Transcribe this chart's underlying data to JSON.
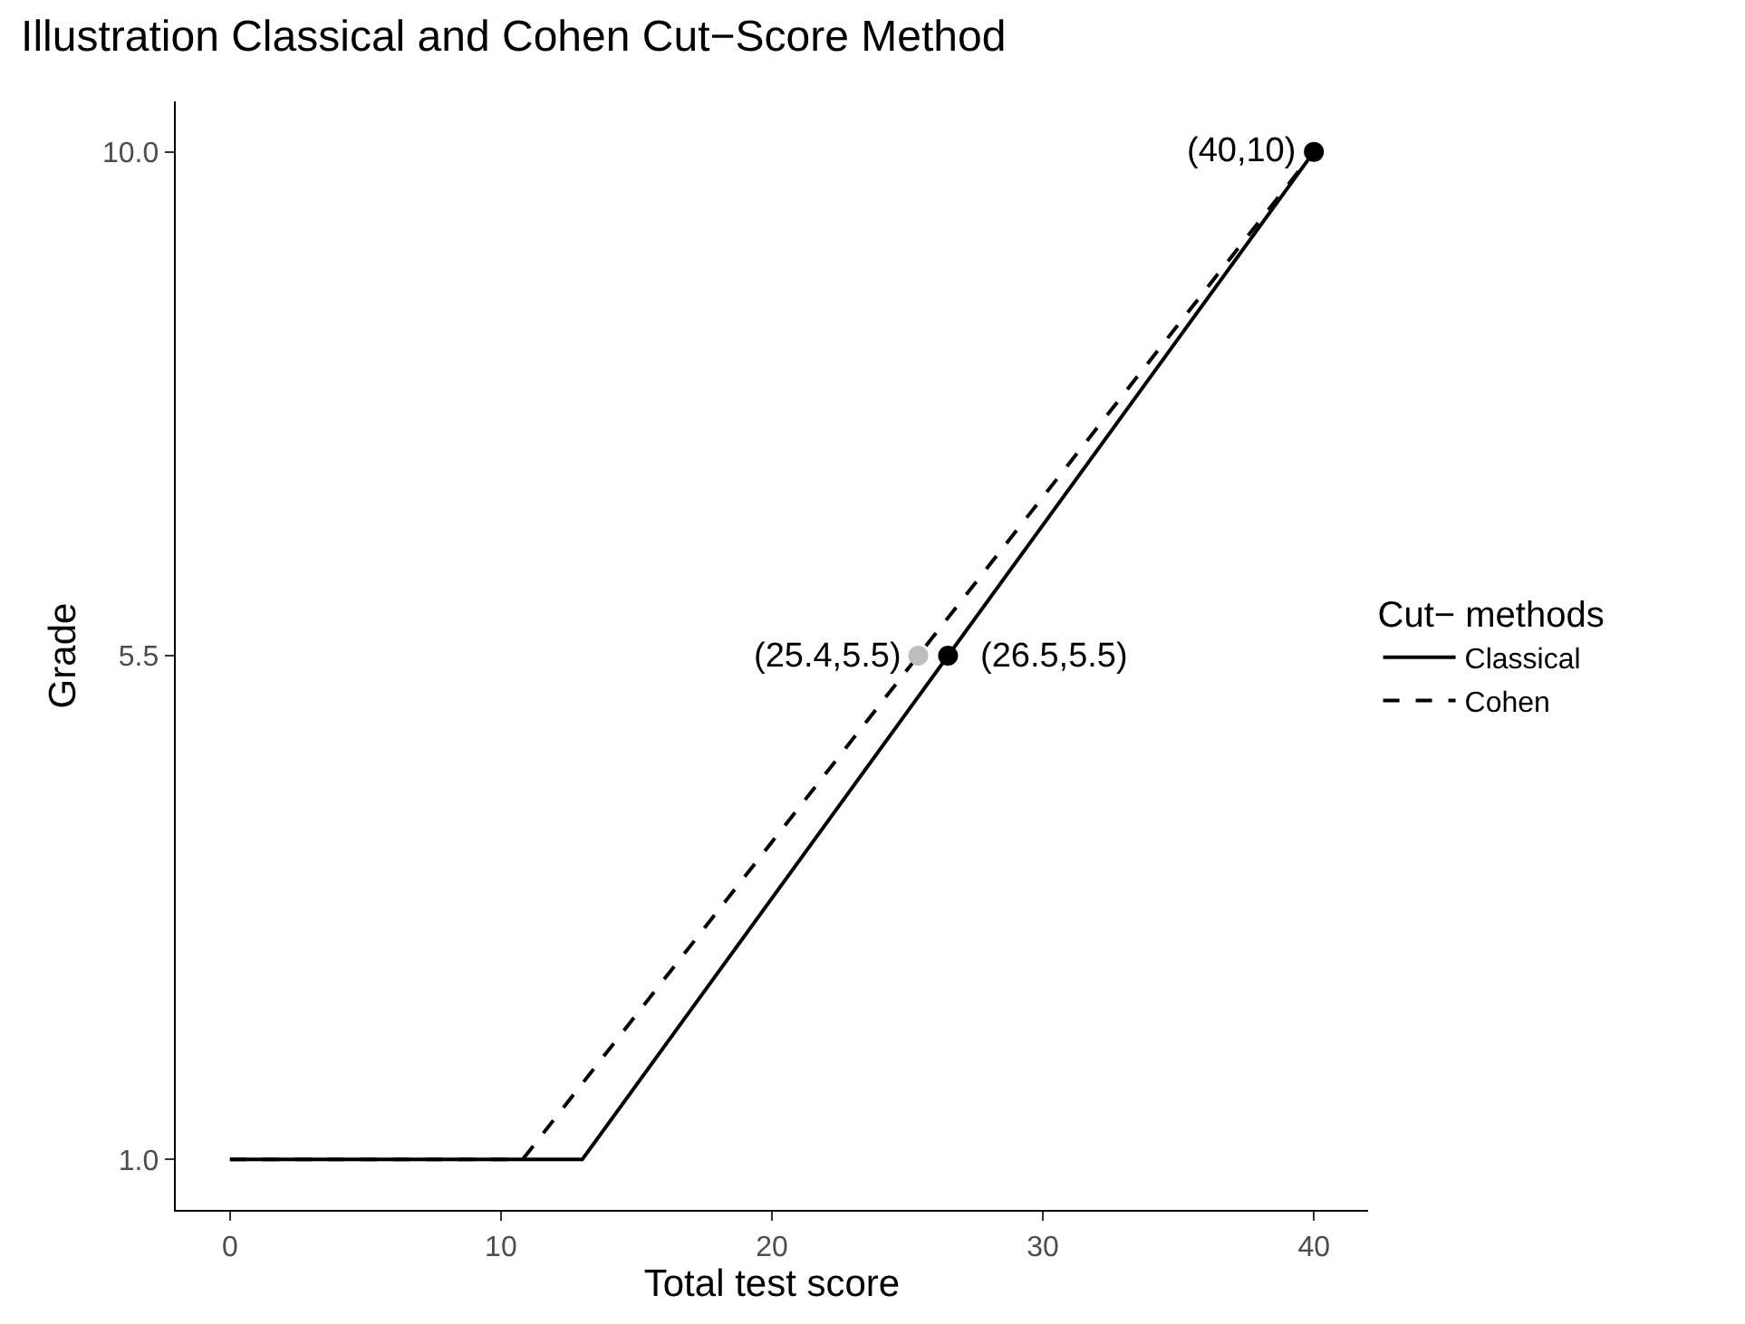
{
  "chart_data": {
    "type": "line",
    "title": "Illustration Classical and Cohen Cut−Score Method",
    "xlabel": "Total test score",
    "ylabel": "Grade",
    "legend_title": "Cut− methods",
    "series": [
      {
        "name": "Classical",
        "color": "#000000",
        "x": [
          0,
          13,
          40
        ],
        "values": [
          1,
          1,
          10
        ],
        "line_style": "solid",
        "marker": "none"
      },
      {
        "name": "Cohen",
        "color": "#000000",
        "x": [
          0,
          10.8,
          40
        ],
        "values": [
          1,
          1,
          10
        ],
        "line_style": "dashed",
        "marker": "none"
      },
      {
        "type": "scatter",
        "x": [
          40,
          26.5,
          25.4
        ],
        "values": [
          10,
          5.5,
          5.5
        ],
        "colors": [
          "#000000",
          "#000000",
          "#bebebe"
        ],
        "marker": "circle"
      }
    ],
    "annotations": [
      {
        "text": "(40,10)",
        "x": 40,
        "y": 10
      },
      {
        "text": "(26.5,5.5)",
        "x": 26.5,
        "y": 5.5
      },
      {
        "text": "(25.4,5.5)",
        "x": 25.4,
        "y": 5.5
      }
    ],
    "xlim": [
      -2,
      42
    ],
    "xticks": [
      0,
      10,
      20,
      30,
      40
    ],
    "ylim": [
      0.55,
      10.45
    ],
    "yticks": [
      {
        "value": 1,
        "label": "1.0"
      },
      {
        "value": 5.5,
        "label": "5.5"
      },
      {
        "value": 10,
        "label": "10.0"
      }
    ],
    "grid": false,
    "legend": "right"
  }
}
